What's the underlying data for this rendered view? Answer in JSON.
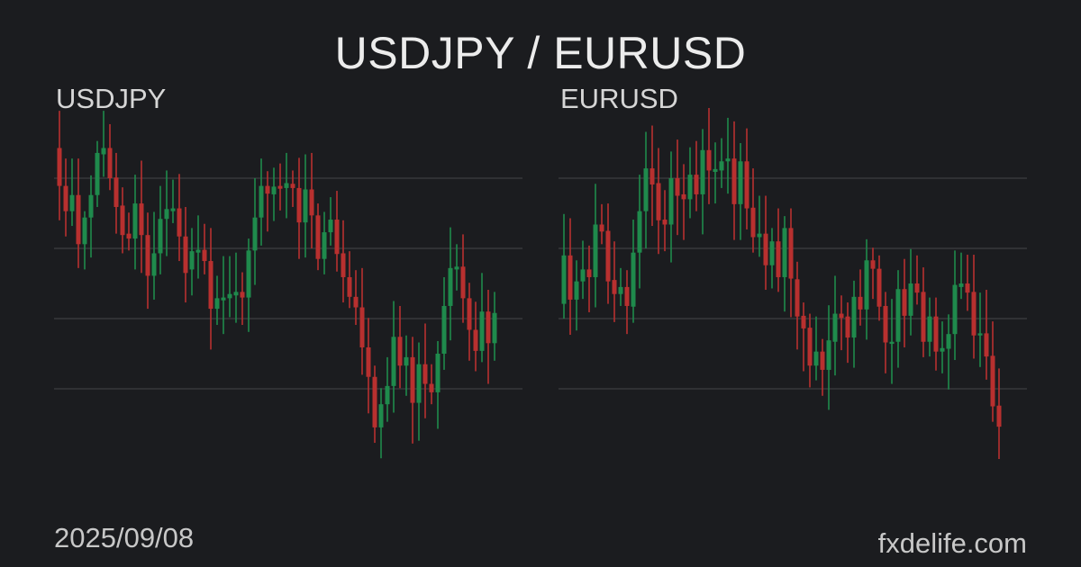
{
  "title": "USDJPY / EURUSD",
  "date": "2025/09/08",
  "site": "fxdelife.com",
  "colors": {
    "background": "#1b1c1f",
    "up": "#1f8a4c",
    "down": "#b8302f",
    "grid": "#45464a"
  },
  "chart_data": [
    {
      "type": "candlestick",
      "title": "USDJPY",
      "grid": true,
      "gridlines": [
        0,
        100,
        200,
        300
      ],
      "ylim": [
        -100,
        400
      ],
      "candles_format": [
        "open",
        "high",
        "low",
        "close"
      ],
      "candles": [
        [
          343,
          396,
          240,
          289
        ],
        [
          289,
          328,
          217,
          253
        ],
        [
          253,
          328,
          232,
          276
        ],
        [
          276,
          328,
          172,
          206
        ],
        [
          206,
          253,
          170,
          244
        ],
        [
          244,
          304,
          187,
          276
        ],
        [
          276,
          353,
          259,
          336
        ],
        [
          334,
          396,
          302,
          343
        ],
        [
          343,
          377,
          283,
          300
        ],
        [
          301,
          336,
          221,
          259
        ],
        [
          261,
          287,
          193,
          219
        ],
        [
          221,
          251,
          197,
          214
        ],
        [
          214,
          305,
          170,
          264
        ],
        [
          264,
          325,
          165,
          219
        ],
        [
          219,
          251,
          114,
          161
        ],
        [
          161,
          252,
          127,
          193
        ],
        [
          193,
          289,
          163,
          242
        ],
        [
          242,
          311,
          189,
          256
        ],
        [
          253,
          298,
          236,
          257
        ],
        [
          257,
          306,
          182,
          217
        ],
        [
          217,
          259,
          123,
          165
        ],
        [
          170,
          229,
          133,
          196
        ],
        [
          194,
          247,
          157,
          198
        ],
        [
          198,
          235,
          163,
          182
        ],
        [
          182,
          229,
          56,
          114
        ],
        [
          114,
          161,
          91,
          129
        ],
        [
          126,
          189,
          78,
          130
        ],
        [
          129,
          189,
          102,
          135
        ],
        [
          133,
          194,
          94,
          138
        ],
        [
          138,
          166,
          91,
          130
        ],
        [
          130,
          214,
          81,
          197
        ],
        [
          197,
          300,
          148,
          244
        ],
        [
          244,
          328,
          204,
          289
        ],
        [
          289,
          310,
          224,
          278
        ],
        [
          277,
          315,
          239,
          288
        ],
        [
          289,
          321,
          254,
          285
        ],
        [
          286,
          336,
          243,
          293
        ],
        [
          292,
          311,
          259,
          286
        ],
        [
          286,
          329,
          185,
          237
        ],
        [
          237,
          334,
          187,
          284
        ],
        [
          284,
          336,
          200,
          247
        ],
        [
          247,
          264,
          169,
          185
        ],
        [
          185,
          252,
          163,
          223
        ],
        [
          223,
          273,
          204,
          241
        ],
        [
          241,
          282,
          167,
          192
        ],
        [
          193,
          240,
          123,
          159
        ],
        [
          159,
          196,
          115,
          131
        ],
        [
          131,
          169,
          91,
          116
        ],
        [
          116,
          172,
          20,
          59
        ],
        [
          59,
          101,
          -35,
          17
        ],
        [
          17,
          33,
          -77,
          -55
        ],
        [
          -55,
          1,
          -99,
          -22
        ],
        [
          -22,
          45,
          -47,
          4
        ],
        [
          4,
          125,
          -34,
          74
        ],
        [
          74,
          118,
          1,
          33
        ],
        [
          33,
          76,
          -10,
          45
        ],
        [
          45,
          74,
          -78,
          -20
        ],
        [
          -20,
          66,
          -74,
          35
        ],
        [
          35,
          93,
          -42,
          7
        ],
        [
          7,
          35,
          -22,
          -5
        ],
        [
          -5,
          68,
          -57,
          50
        ],
        [
          50,
          159,
          27,
          118
        ],
        [
          118,
          230,
          69,
          172
        ],
        [
          170,
          206,
          140,
          174
        ],
        [
          174,
          220,
          94,
          129
        ],
        [
          129,
          151,
          40,
          84
        ],
        [
          84,
          124,
          25,
          54
        ],
        [
          54,
          165,
          38,
          110
        ],
        [
          110,
          141,
          7,
          65
        ],
        [
          65,
          138,
          40,
          108
        ]
      ]
    },
    {
      "type": "candlestick",
      "title": "EURUSD",
      "grid": true,
      "gridlines": [
        0,
        100,
        200,
        300
      ],
      "ylim": [
        -100,
        400
      ],
      "candles_format": [
        "open",
        "high",
        "low",
        "close"
      ],
      "candles": [
        [
          121,
          249,
          100,
          190
        ],
        [
          190,
          243,
          77,
          127
        ],
        [
          127,
          183,
          83,
          153
        ],
        [
          153,
          211,
          128,
          170
        ],
        [
          170,
          204,
          109,
          159
        ],
        [
          159,
          292,
          116,
          234
        ],
        [
          234,
          263,
          206,
          224
        ],
        [
          225,
          264,
          121,
          153
        ],
        [
          155,
          210,
          95,
          135
        ],
        [
          135,
          172,
          118,
          145
        ],
        [
          145,
          169,
          78,
          118
        ],
        [
          117,
          241,
          94,
          194
        ],
        [
          194,
          305,
          143,
          253
        ],
        [
          253,
          366,
          200,
          314
        ],
        [
          314,
          375,
          232,
          291
        ],
        [
          293,
          343,
          192,
          240
        ],
        [
          241,
          283,
          196,
          234
        ],
        [
          234,
          338,
          180,
          300
        ],
        [
          300,
          355,
          219,
          275
        ],
        [
          277,
          320,
          212,
          270
        ],
        [
          270,
          344,
          243,
          305
        ],
        [
          305,
          353,
          253,
          277
        ],
        [
          277,
          370,
          220,
          340
        ],
        [
          340,
          400,
          263,
          311
        ],
        [
          309,
          351,
          264,
          313
        ],
        [
          311,
          357,
          286,
          324
        ],
        [
          324,
          386,
          278,
          328
        ],
        [
          328,
          381,
          212,
          263
        ],
        [
          263,
          350,
          212,
          324
        ],
        [
          324,
          371,
          227,
          257
        ],
        [
          258,
          314,
          194,
          216
        ],
        [
          216,
          275,
          188,
          221
        ],
        [
          221,
          275,
          141,
          176
        ],
        [
          176,
          229,
          143,
          210
        ],
        [
          210,
          257,
          138,
          159
        ],
        [
          159,
          246,
          110,
          229
        ],
        [
          229,
          257,
          102,
          157
        ],
        [
          156,
          181,
          56,
          103
        ],
        [
          104,
          123,
          25,
          86
        ],
        [
          87,
          107,
          2,
          33
        ],
        [
          33,
          103,
          12,
          53
        ],
        [
          53,
          71,
          -10,
          27
        ],
        [
          27,
          119,
          -30,
          69
        ],
        [
          67,
          161,
          19,
          107
        ],
        [
          107,
          133,
          55,
          101
        ],
        [
          103,
          123,
          37,
          73
        ],
        [
          73,
          154,
          30,
          131
        ],
        [
          131,
          170,
          90,
          113
        ],
        [
          113,
          213,
          70,
          183
        ],
        [
          183,
          201,
          128,
          171
        ],
        [
          171,
          190,
          97,
          117
        ],
        [
          118,
          138,
          22,
          66
        ],
        [
          64,
          128,
          7,
          67
        ],
        [
          67,
          169,
          30,
          142
        ],
        [
          142,
          185,
          59,
          104
        ],
        [
          104,
          199,
          76,
          150
        ],
        [
          150,
          190,
          120,
          137
        ],
        [
          138,
          173,
          45,
          67
        ],
        [
          67,
          130,
          46,
          103
        ],
        [
          103,
          130,
          26,
          53
        ],
        [
          53,
          96,
          22,
          58
        ],
        [
          57,
          106,
          -1,
          78
        ],
        [
          78,
          197,
          41,
          148
        ],
        [
          145,
          194,
          128,
          150
        ],
        [
          150,
          191,
          111,
          137
        ],
        [
          138,
          191,
          43,
          76
        ],
        [
          76,
          137,
          31,
          79
        ],
        [
          79,
          141,
          13,
          46
        ],
        [
          47,
          96,
          -47,
          -25
        ],
        [
          -24,
          29,
          -100,
          -54
        ]
      ]
    }
  ]
}
